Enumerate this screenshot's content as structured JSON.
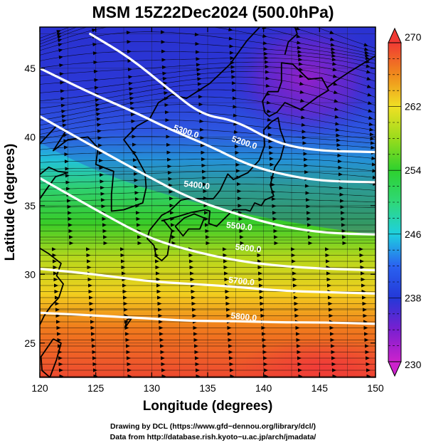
{
  "title": "MSM 15Z22Dec2024 (500.0hPa)",
  "x_axis": {
    "label": "Longitude (degrees)",
    "range": [
      120,
      150
    ],
    "ticks": [
      "120",
      "125",
      "130",
      "135",
      "140",
      "145",
      "150"
    ]
  },
  "y_axis": {
    "label": "Latitude  (degrees)",
    "range": [
      22.5,
      48
    ],
    "ticks": [
      "25",
      "30",
      "35",
      "40",
      "45"
    ]
  },
  "colorbar": {
    "range": [
      230,
      270
    ],
    "labels": [
      "270",
      "262",
      "254",
      "246",
      "238",
      "230"
    ],
    "stops": [
      {
        "value": 230,
        "color": "#cc22cc"
      },
      {
        "value": 234,
        "color": "#7a1fd0"
      },
      {
        "value": 238,
        "color": "#2438d8"
      },
      {
        "value": 242,
        "color": "#2a62f0"
      },
      {
        "value": 246,
        "color": "#1ed0e0"
      },
      {
        "value": 250,
        "color": "#2fd878"
      },
      {
        "value": 254,
        "color": "#2ed12e"
      },
      {
        "value": 258,
        "color": "#9adc1c"
      },
      {
        "value": 262,
        "color": "#f0e024"
      },
      {
        "value": 266,
        "color": "#f08a1c"
      },
      {
        "value": 270,
        "color": "#f03a34"
      }
    ]
  },
  "contours": [
    {
      "label": "5200.0"
    },
    {
      "label": "5300.0"
    },
    {
      "label": "5400.0"
    },
    {
      "label": "5500.0"
    },
    {
      "label": "5600.0"
    },
    {
      "label": "5700.0"
    },
    {
      "label": "5800.0"
    }
  ],
  "credits": {
    "line1": "Drawing by DCL (https://www.gfd−dennou.org/library/dcl/)",
    "line2": "Data from http://database.rish.kyoto−u.ac.jp/arch/jmadata/"
  }
}
